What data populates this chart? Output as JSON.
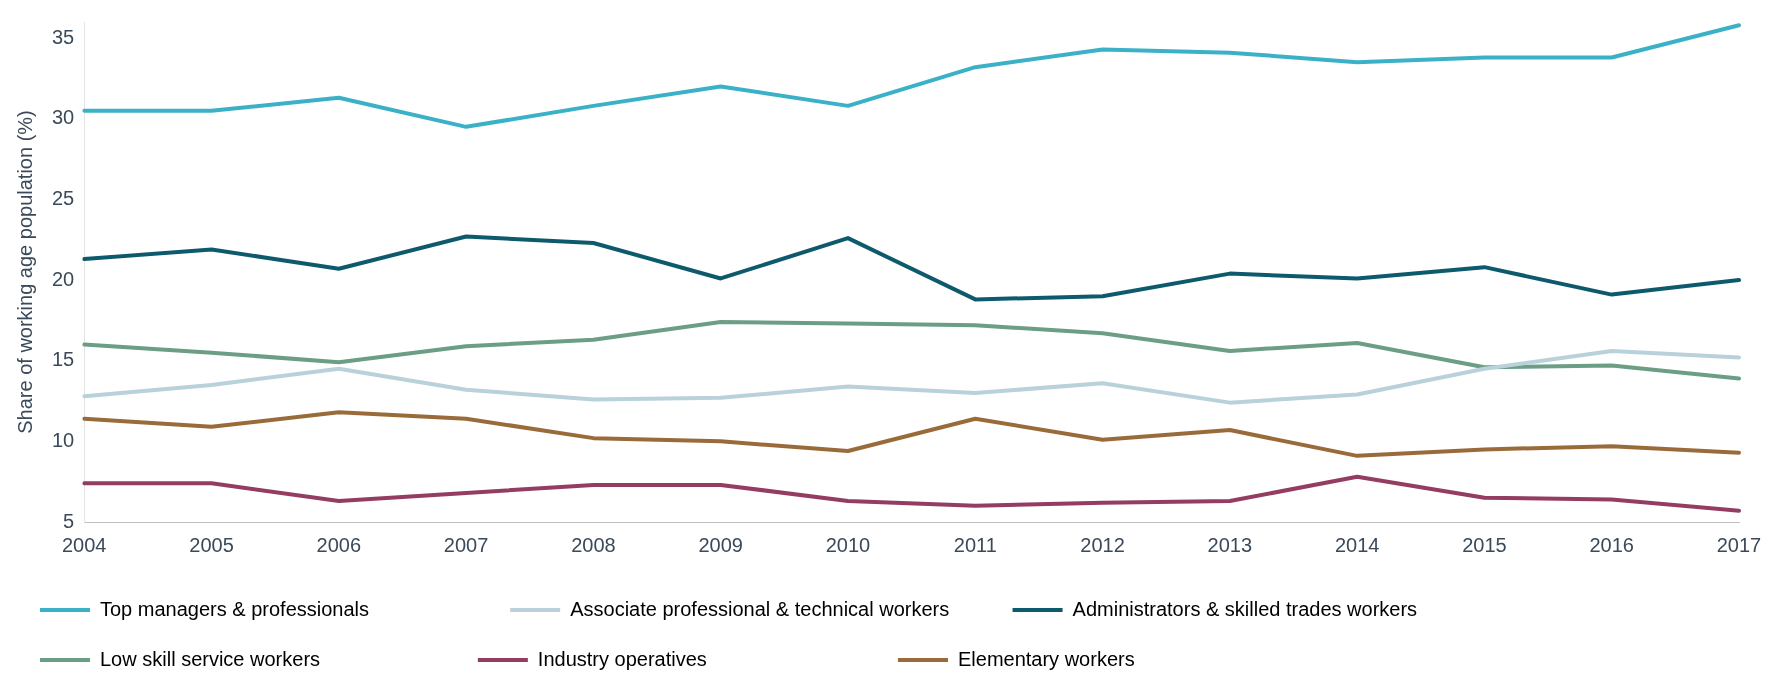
{
  "chart_data": {
    "type": "line",
    "ylabel": "Share of working age population (%)",
    "categories": [
      "2004",
      "2005",
      "2006",
      "2007",
      "2008",
      "2009",
      "2010",
      "2011",
      "2012",
      "2013",
      "2014",
      "2015",
      "2016",
      "2017"
    ],
    "series": [
      {
        "name": "Top managers & professionals",
        "color": "#3bb1c8",
        "values": [
          30.5,
          30.5,
          31.3,
          29.5,
          30.8,
          32.0,
          30.8,
          33.2,
          34.3,
          34.1,
          33.5,
          33.8,
          33.8,
          35.8
        ]
      },
      {
        "name": "Associate professional & technical workers",
        "color": "#b8d1da",
        "values": [
          12.8,
          13.5,
          14.5,
          13.2,
          12.6,
          12.7,
          13.4,
          13.0,
          13.6,
          12.4,
          12.9,
          14.5,
          15.6,
          15.2
        ]
      },
      {
        "name": "Administrators & skilled trades workers",
        "color": "#0e5a6d",
        "values": [
          21.3,
          21.9,
          20.7,
          22.7,
          22.3,
          20.1,
          22.6,
          18.8,
          19.0,
          20.4,
          20.1,
          20.8,
          19.1,
          20.0
        ]
      },
      {
        "name": "Low skill service workers",
        "color": "#6b9e85",
        "values": [
          16.0,
          15.5,
          14.9,
          15.9,
          16.3,
          17.4,
          17.3,
          17.2,
          16.7,
          15.6,
          16.1,
          14.6,
          14.7,
          13.9
        ]
      },
      {
        "name": "Industry operatives",
        "color": "#943c62",
        "values": [
          7.4,
          7.4,
          6.3,
          6.8,
          7.3,
          7.3,
          6.3,
          6.0,
          6.2,
          6.3,
          7.8,
          6.5,
          6.4,
          5.7
        ]
      },
      {
        "name": "Elementary workers",
        "color": "#9a6b3a",
        "values": [
          11.4,
          10.9,
          11.8,
          11.4,
          10.2,
          10.0,
          9.4,
          11.4,
          10.1,
          10.7,
          9.1,
          9.5,
          9.7,
          9.3
        ]
      }
    ],
    "ylim": [
      5,
      36
    ],
    "yticks": [
      5,
      10,
      15,
      20,
      25,
      30,
      35
    ],
    "grid": false,
    "legend": "bottom",
    "marker": "none",
    "line_style": "solid"
  }
}
